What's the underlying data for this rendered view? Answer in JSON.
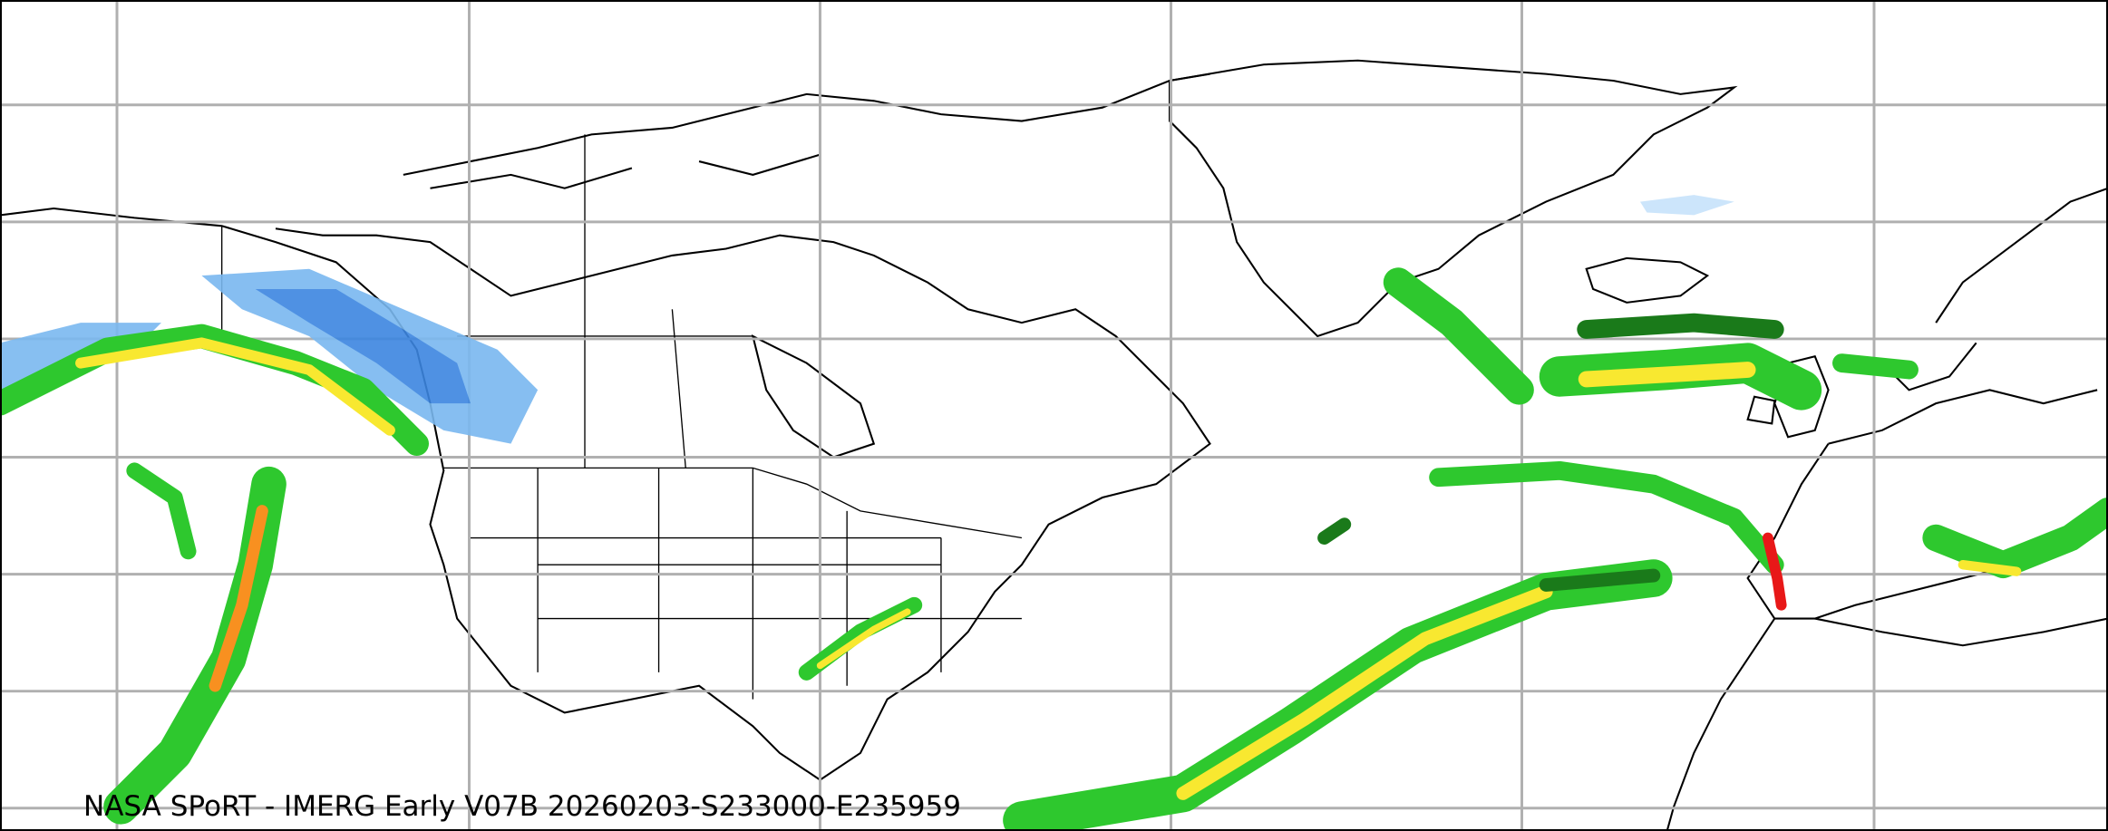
{
  "map": {
    "caption": "NASA SPoRT - IMERG Early V07B 20260203-S233000-E235959",
    "projection": "equirectangular",
    "gridlines": true,
    "region": "North Pacific, North America, North Atlantic, Europe, North Africa",
    "colors": {
      "coastline": "#000000",
      "grid": "#b0b0b0",
      "snow_light": "#c6e2fb",
      "snow_medium": "#7ab8f0",
      "snow_heavy": "#3c86e0",
      "rain_light": "#1a7a1a",
      "rain_low": "#2ec82e",
      "rain_medium": "#b8f030",
      "rain_moderate": "#f8e830",
      "rain_heavy": "#f89020",
      "rain_very_heavy": "#e81818",
      "mixed": "#e040c0"
    }
  }
}
